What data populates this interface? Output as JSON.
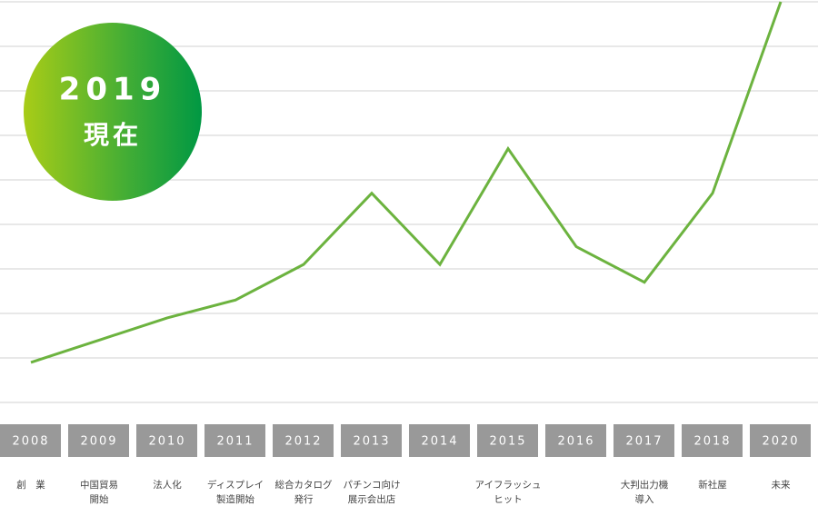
{
  "chart_data": {
    "type": "line",
    "categories": [
      "2008",
      "2009",
      "2010",
      "2011",
      "2012",
      "2013",
      "2014",
      "2015",
      "2016",
      "2017",
      "2018",
      "2020"
    ],
    "events": [
      [
        "創　業"
      ],
      [
        "中国貿易",
        "開始"
      ],
      [
        "法人化"
      ],
      [
        "ディスプレイ",
        "製造開始"
      ],
      [
        "総合カタログ",
        "発行"
      ],
      [
        "パチンコ向け",
        "展示会出店"
      ],
      null,
      [
        "アイフラッシュ",
        "ヒット"
      ],
      null,
      [
        "大判出力機",
        "導入"
      ],
      [
        "新社屋"
      ],
      [
        "未来"
      ]
    ],
    "values": [
      0.9,
      1.4,
      1.9,
      2.3,
      3.1,
      4.7,
      3.1,
      5.7,
      3.5,
      2.7,
      4.7,
      9.0
    ],
    "color": "#6cb33f",
    "ylim": [
      0,
      9
    ],
    "yticks": [
      0,
      1,
      2,
      3,
      4,
      5,
      6,
      7,
      8,
      9
    ],
    "grid": true
  },
  "badge": {
    "year": "2019",
    "label": "現在"
  }
}
